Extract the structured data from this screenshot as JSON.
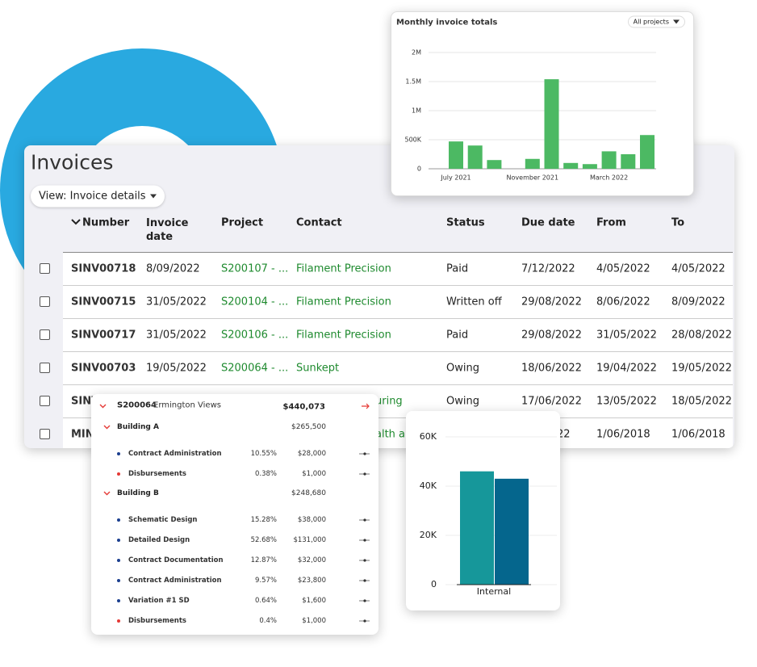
{
  "invoices": {
    "title": "Invoices",
    "view_button": "View: Invoice details",
    "columns": [
      "Number",
      "Invoice date",
      "Project",
      "Contact",
      "Status",
      "Due date",
      "From",
      "To"
    ],
    "rows": [
      [
        "SINV00718",
        "8/09/2022",
        "S200107 - ...",
        "Filament Precision",
        "Paid",
        "7/12/2022",
        "4/05/2022",
        "4/05/2022"
      ],
      [
        "SINV00715",
        "31/05/2022",
        "S200104 - ...",
        "Filament Precision",
        "Written off",
        "29/08/2022",
        "8/06/2022",
        "8/09/2022"
      ],
      [
        "SINV00717",
        "31/05/2022",
        "S200106 - ...",
        "Filament Precision",
        "Paid",
        "29/08/2022",
        "31/05/2022",
        "28/08/2022"
      ],
      [
        "SINV00703",
        "19/05/2022",
        "S200064 - ...",
        "Sunkept",
        "Owing",
        "18/06/2022",
        "19/04/2022",
        "19/05/2022"
      ],
      [
        "SINV",
        null,
        null,
        "uring",
        "Owing",
        "17/06/2022",
        "13/05/2022",
        "18/05/2022"
      ],
      [
        "MIN",
        null,
        null,
        "alth an",
        null,
        "22",
        "1/06/2018",
        "1/06/2018"
      ]
    ]
  },
  "monthly_chart": {
    "type": "bar",
    "title": "Monthly invoice totals",
    "filter": "All projects",
    "categories": [
      "July 2021",
      null,
      null,
      null,
      "November 2021",
      null,
      null,
      null,
      "March 2022",
      null,
      null
    ],
    "values": [
      470000,
      400000,
      150000,
      0,
      170000,
      1540000,
      100000,
      80000,
      300000,
      250000,
      580000
    ],
    "color": "#4cb963",
    "ylim": [
      0,
      2000000
    ],
    "yticks": [
      0,
      {
        "value": 500000,
        "label": "500K"
      },
      {
        "value": 1000000,
        "label": "1M"
      },
      {
        "value": 1500000,
        "label": "1.5M"
      },
      {
        "value": 2000000,
        "label": "2M"
      }
    ],
    "grid": true
  },
  "breakdown": {
    "project_code": "S200064",
    "project_name": "Ermington Views",
    "total": "$440,073",
    "groups": [
      {
        "name": "Building A",
        "amount": "$265,500",
        "items": [
          {
            "name": "Contract Administration",
            "percent": "10.55%",
            "amount": "$28,000",
            "color": "#1b3f8f"
          },
          {
            "name": "Disbursements",
            "percent": "0.38%",
            "amount": "$1,000",
            "color": "#e53935"
          }
        ]
      },
      {
        "name": "Building B",
        "amount": "$248,680",
        "items": [
          {
            "name": "Schematic Design",
            "percent": "15.28%",
            "amount": "$38,000",
            "color": "#1b3f8f"
          },
          {
            "name": "Detailed Design",
            "percent": "52.68%",
            "amount": "$131,000",
            "color": "#1b3f8f"
          },
          {
            "name": "Contract Documentation",
            "percent": "12.87%",
            "amount": "$32,000",
            "color": "#1b3f8f"
          },
          {
            "name": "Contract Administration",
            "percent": "9.57%",
            "amount": "$23,800",
            "color": "#1b3f8f"
          },
          {
            "name": "Variation #1 SD",
            "percent": "0.64%",
            "amount": "$1,600",
            "color": "#1b3f8f"
          },
          {
            "name": "Disbursements",
            "percent": "0.4%",
            "amount": "$1,000",
            "color": "#e53935"
          }
        ]
      }
    ]
  },
  "internal_chart": {
    "type": "bar",
    "categories": [
      "Internal"
    ],
    "series": [
      {
        "color": "#16979a",
        "values": [
          46000
        ]
      },
      {
        "color": "#05668d",
        "values": [
          43000
        ]
      }
    ],
    "ylim": [
      0,
      60000
    ],
    "yticks": [
      0,
      {
        "value": 20000,
        "label": "20K"
      },
      {
        "value": 40000,
        "label": "40K"
      },
      {
        "value": 60000,
        "label": "60K"
      }
    ],
    "grid": true
  }
}
